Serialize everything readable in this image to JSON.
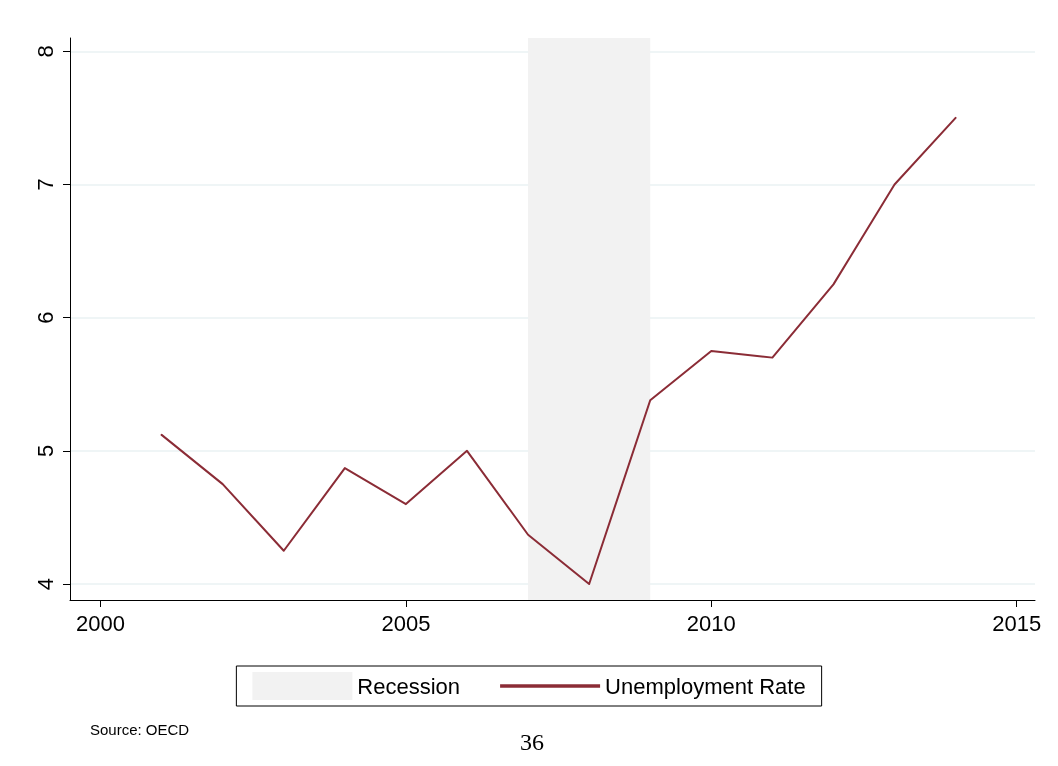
{
  "chart_data": {
    "type": "line",
    "x": [
      2001,
      2002,
      2003,
      2004,
      2005,
      2006,
      2007,
      2008,
      2009,
      2010,
      2011,
      2012,
      2013,
      2014
    ],
    "series": [
      {
        "name": "Unemployment Rate",
        "color": "#8b2c36",
        "values": [
          5.12,
          4.75,
          4.25,
          4.87,
          4.6,
          5.0,
          4.37,
          4.0,
          5.38,
          5.75,
          5.7,
          6.25,
          7.0,
          7.5
        ]
      }
    ],
    "xlim": [
      1999.5,
      2015.3
    ],
    "xticks": [
      2000,
      2005,
      2010,
      2015
    ],
    "ylim": [
      3.88,
      8.1
    ],
    "yticks": [
      4,
      5,
      6,
      7,
      8
    ],
    "bands": [
      {
        "axis": "x",
        "from": 2007,
        "to": 2009,
        "label": "Recession",
        "color": "#f2f2f2"
      }
    ],
    "grid": "y",
    "legend": "bottom",
    "marker": "none",
    "line_style": "solid",
    "annotations": [
      "Source: OECD",
      "36"
    ]
  }
}
